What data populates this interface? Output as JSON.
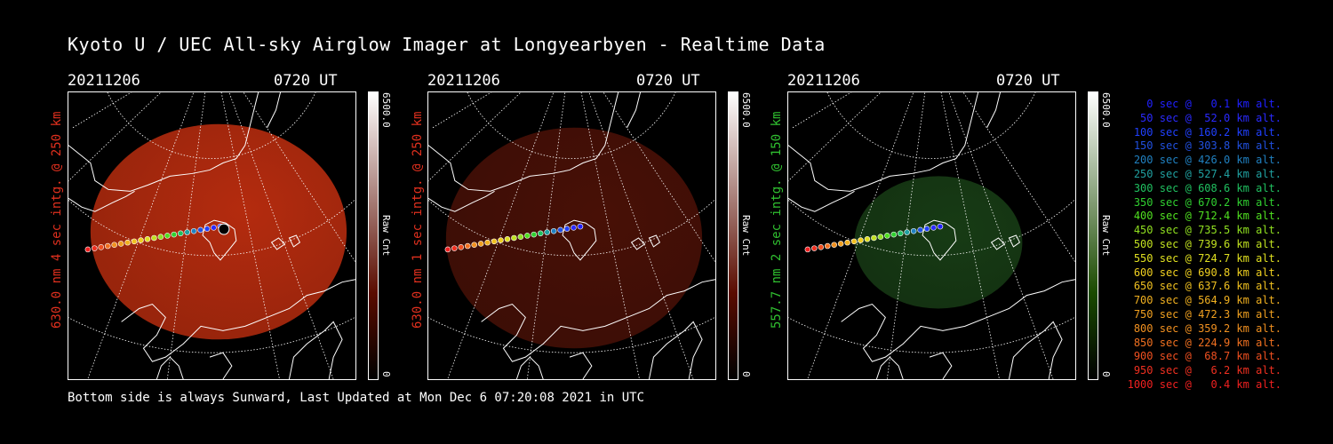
{
  "title": "Kyoto U / UEC All-sky Airglow Imager at Longyearbyen - Realtime Data",
  "panels": [
    {
      "date": "20211206",
      "time": "0720 UT",
      "side_label": "630.0 nm 4 sec intg. @ 250 km",
      "side_color": "#e0301e",
      "cbar_max": "6500.0",
      "cbar_min": "0",
      "cbar_unit": "Raw Cnt",
      "cbar_top": "#ffffff",
      "cbar_bottom": "#5a0c00",
      "glow": "#c83010",
      "glow_opacity": 0.9
    },
    {
      "date": "20211206",
      "time": "0720 UT",
      "side_label": "630.0 nm 1 sec intg. @ 250 km",
      "side_color": "#e0301e",
      "cbar_max": "6500.0",
      "cbar_min": "0",
      "cbar_unit": "Raw Cnt",
      "cbar_top": "#ffffff",
      "cbar_bottom": "#5a0c00",
      "glow": "#5a1408",
      "glow_opacity": 0.8
    },
    {
      "date": "20211206",
      "time": "0720 UT",
      "side_label": "557.7 nm 2 sec intg. @ 150 km",
      "side_color": "#30c030",
      "cbar_max": "6500.0",
      "cbar_min": "0",
      "cbar_unit": "Raw Cnt",
      "cbar_top": "#ffffff",
      "cbar_bottom": "#1a4a00",
      "glow": "#1d4a1a",
      "glow_opacity": 0.8
    }
  ],
  "legend": [
    {
      "text": "0 sec @   0.1 km alt.",
      "color": "#2020ff"
    },
    {
      "text": "50 sec @  52.0 km alt.",
      "color": "#2a2aff"
    },
    {
      "text": "100 sec @ 160.2 km alt.",
      "color": "#2040ff"
    },
    {
      "text": "150 sec @ 303.8 km alt.",
      "color": "#2050e0"
    },
    {
      "text": "200 sec @ 426.0 km alt.",
      "color": "#2080c0"
    },
    {
      "text": "250 sec @ 527.4 km alt.",
      "color": "#20a0a0"
    },
    {
      "text": "300 sec @ 608.6 km alt.",
      "color": "#20c060"
    },
    {
      "text": "350 sec @ 670.2 km alt.",
      "color": "#30d030"
    },
    {
      "text": "400 sec @ 712.4 km alt.",
      "color": "#50e020"
    },
    {
      "text": "450 sec @ 735.5 km alt.",
      "color": "#90e020"
    },
    {
      "text": "500 sec @ 739.6 km alt.",
      "color": "#c0e020"
    },
    {
      "text": "550 sec @ 724.7 km alt.",
      "color": "#e0e020"
    },
    {
      "text": "600 sec @ 690.8 km alt.",
      "color": "#f0d020"
    },
    {
      "text": "650 sec @ 637.6 km alt.",
      "color": "#f0c020"
    },
    {
      "text": "700 sec @ 564.9 km alt.",
      "color": "#f0b020"
    },
    {
      "text": "750 sec @ 472.3 km alt.",
      "color": "#f0a020"
    },
    {
      "text": "800 sec @ 359.2 km alt.",
      "color": "#f09020"
    },
    {
      "text": "850 sec @ 224.9 km alt.",
      "color": "#f07020"
    },
    {
      "text": "900 sec @  68.7 km alt.",
      "color": "#f05020"
    },
    {
      "text": "950 sec @   6.2 km alt.",
      "color": "#f03020"
    },
    {
      "text": "1000 sec @   0.4 km alt.",
      "color": "#f02020"
    }
  ],
  "footer": "Bottom side is always Sunward, Last Updated at Mon Dec  6 07:20:08 2021 in UTC"
}
